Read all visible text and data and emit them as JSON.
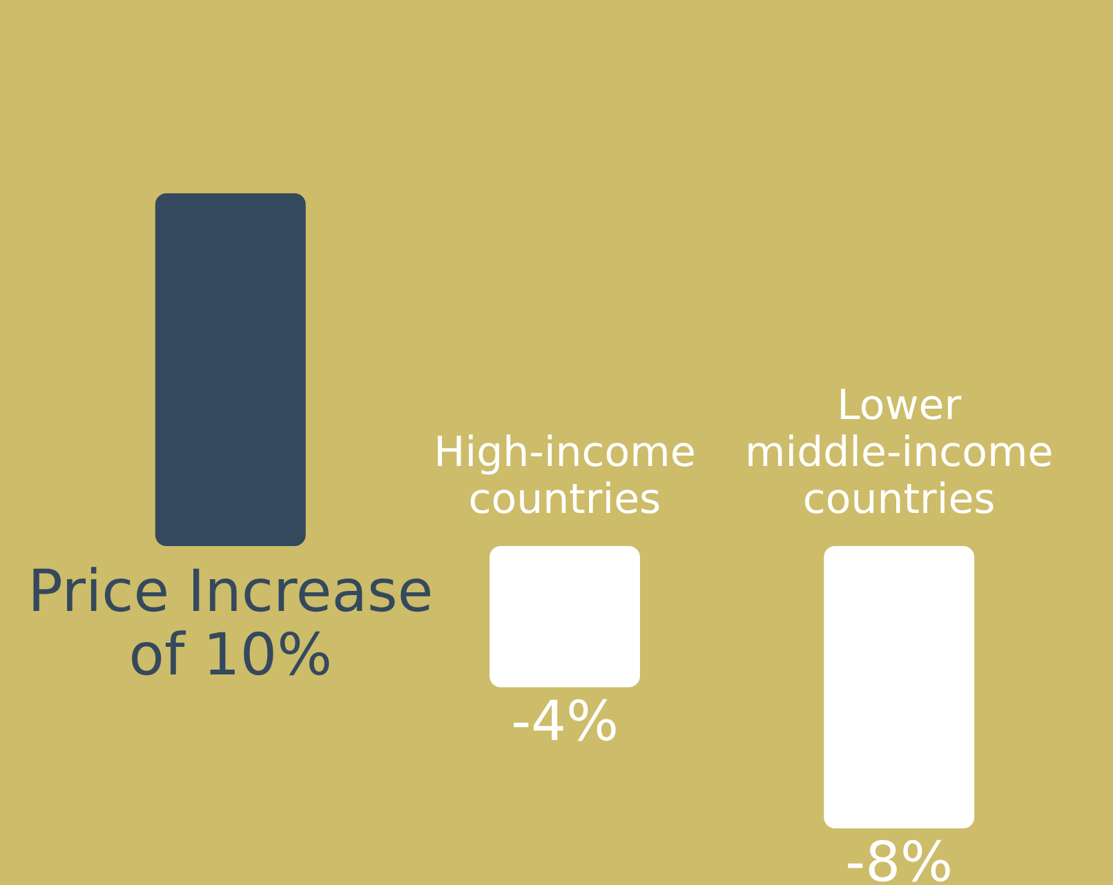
{
  "chart_data": {
    "type": "bar",
    "categories": [
      "Price Increase of 10%",
      "High-income countries",
      "Lower middle-income countries"
    ],
    "values": [
      10,
      -4,
      -8
    ],
    "colors": [
      "#34495e",
      "#ffffff",
      "#ffffff"
    ],
    "value_labels": [
      null,
      "-4%",
      "-8%"
    ]
  }
}
